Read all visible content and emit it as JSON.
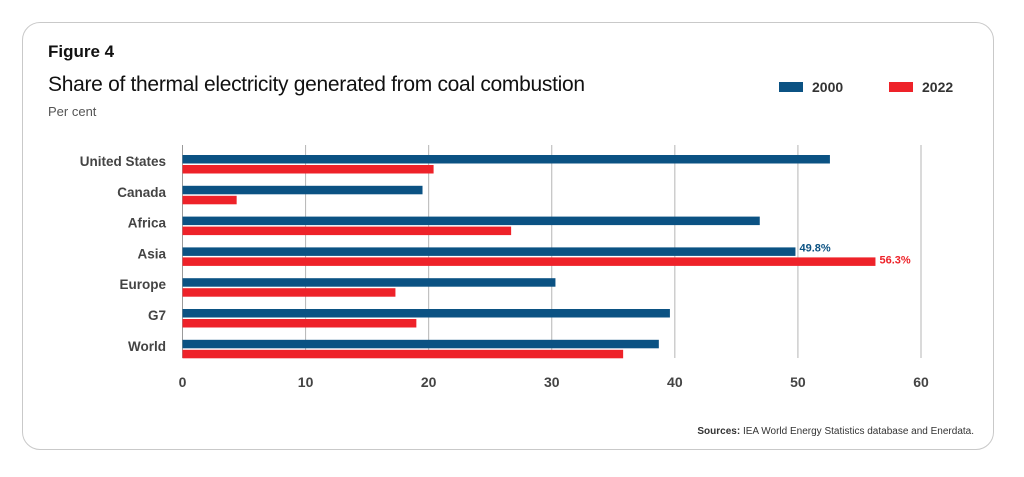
{
  "figure_label": "Figure 4",
  "colors": {
    "2000": "#0b5283",
    "2022": "#ee2229"
  },
  "sources_label": "Sources:",
  "sources_text": "IEA World Energy Statistics database and Enerdata.",
  "chart_data": {
    "type": "bar",
    "orientation": "horizontal",
    "title": "Share of thermal electricity generated from coal combustion",
    "subtitle": "Per cent",
    "categories": [
      "United States",
      "Canada",
      "Africa",
      "Asia",
      "Europe",
      "G7",
      "World"
    ],
    "series": [
      {
        "name": "2000",
        "values": [
          52.6,
          19.5,
          46.9,
          49.8,
          30.3,
          39.6,
          38.7
        ]
      },
      {
        "name": "2022",
        "values": [
          20.4,
          4.4,
          26.7,
          56.3,
          17.3,
          19.0,
          35.8
        ]
      }
    ],
    "data_labels": [
      {
        "series": "2000",
        "category": "Asia",
        "text": "49.8%"
      },
      {
        "series": "2022",
        "category": "Asia",
        "text": "56.3%"
      }
    ],
    "xlim": [
      0,
      60
    ],
    "xticks": [
      "0",
      "10",
      "20",
      "30",
      "40",
      "50",
      "60"
    ],
    "grid": "vertical",
    "legend": "top-right"
  }
}
